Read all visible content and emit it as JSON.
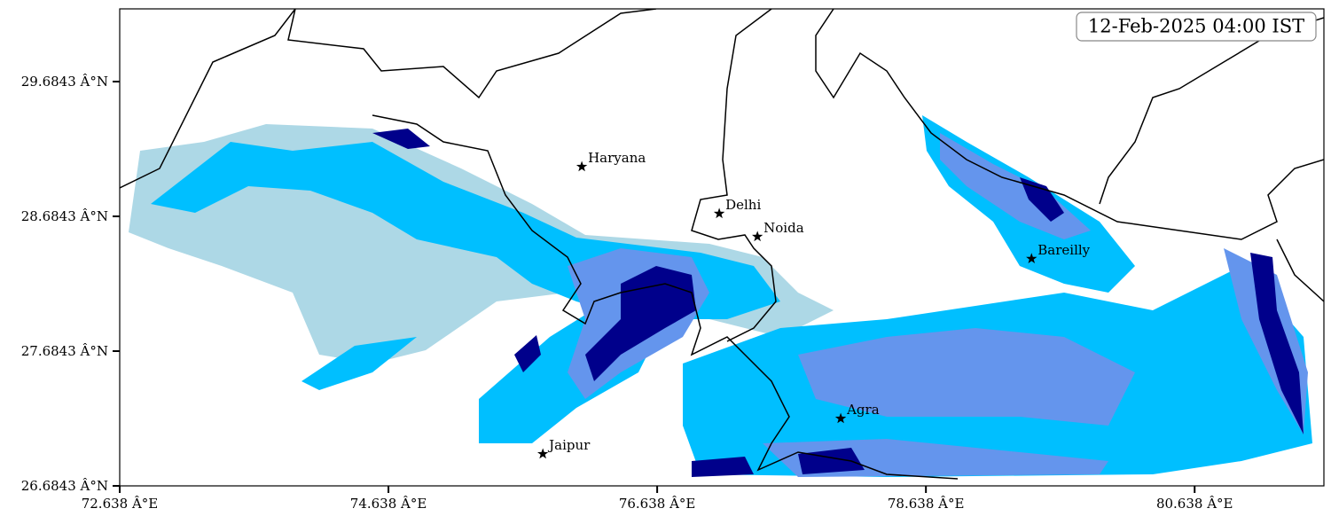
{
  "map": {
    "timestamp": "12-Feb-2025 04:00 IST",
    "xlim": [
      72.638,
      81.6
    ],
    "ylim": [
      26.6843,
      30.224
    ],
    "xticks": [
      {
        "value": 72.638,
        "label": "72.638 Â°E"
      },
      {
        "value": 74.638,
        "label": "74.638 Â°E"
      },
      {
        "value": 76.638,
        "label": "76.638 Â°E"
      },
      {
        "value": 78.638,
        "label": "78.638 Â°E"
      },
      {
        "value": 80.638,
        "label": "80.638 Â°E"
      }
    ],
    "yticks": [
      {
        "value": 26.6843,
        "label": "26.6843 Â°N"
      },
      {
        "value": 27.6843,
        "label": "27.6843 Â°N"
      },
      {
        "value": 28.6843,
        "label": "28.6843 Â°N"
      },
      {
        "value": 29.6843,
        "label": "29.6843 Â°N"
      }
    ],
    "cities": [
      {
        "name": "Haryana",
        "lon": 76.077,
        "lat": 29.053
      },
      {
        "name": "Delhi",
        "lon": 77.1,
        "lat": 28.705
      },
      {
        "name": "Noida",
        "lon": 77.384,
        "lat": 28.534
      },
      {
        "name": "Bareilly",
        "lon": 79.424,
        "lat": 28.37
      },
      {
        "name": "Agra",
        "lon": 78.004,
        "lat": 27.184
      },
      {
        "name": "Jaipur",
        "lon": 75.787,
        "lat": 26.921
      }
    ]
  }
}
